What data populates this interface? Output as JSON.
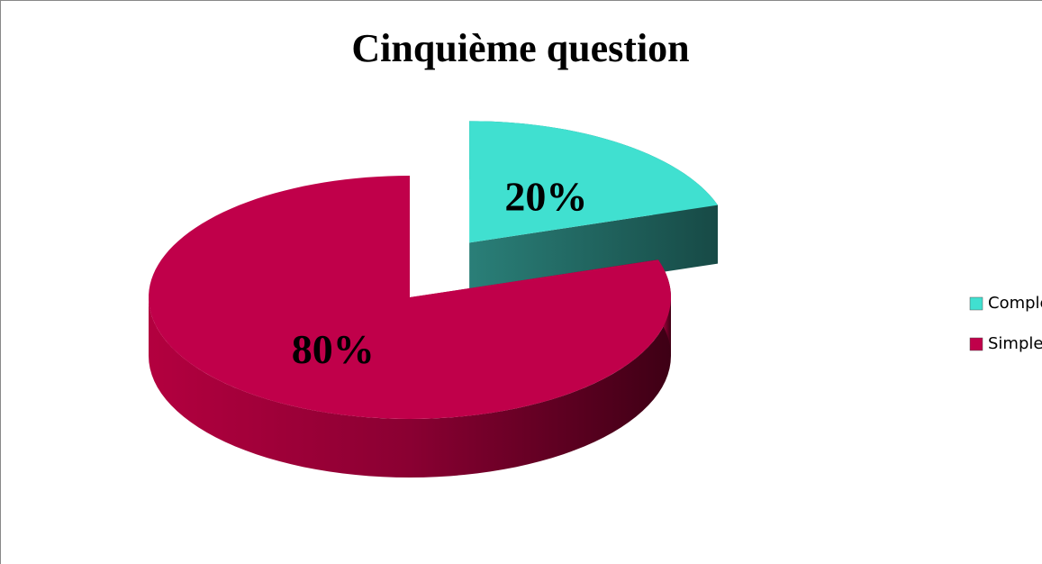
{
  "chart_data": {
    "type": "pie",
    "title": "Cinquième question",
    "categories": [
      "Complexe",
      "Simple"
    ],
    "values": [
      20,
      80
    ],
    "value_labels": [
      "20%",
      "80%"
    ],
    "colors": [
      "#40e0d0",
      "#c0004a"
    ],
    "legend": "right"
  }
}
